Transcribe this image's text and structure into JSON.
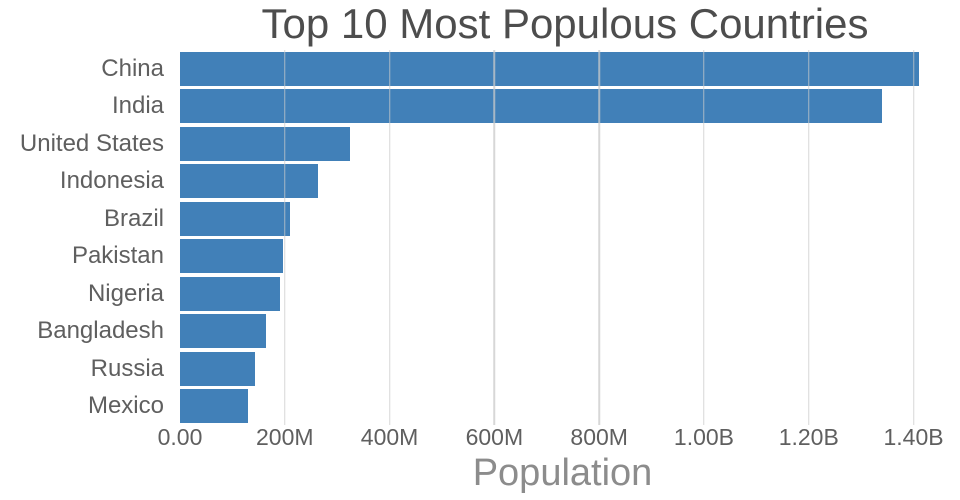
{
  "chart_data": {
    "type": "bar",
    "orientation": "horizontal",
    "title": "Top 10 Most Populous Countries",
    "xlabel": "Population",
    "ylabel": "",
    "categories": [
      "China",
      "India",
      "United States",
      "Indonesia",
      "Brazil",
      "Pakistan",
      "Nigeria",
      "Bangladesh",
      "Russia",
      "Mexico"
    ],
    "values": [
      1410000000,
      1340000000,
      325000000,
      264000000,
      209000000,
      197000000,
      191000000,
      165000000,
      144000000,
      129000000
    ],
    "xlim": [
      0,
      1460000000
    ],
    "xticks": [
      {
        "value": 0,
        "label": "0.00"
      },
      {
        "value": 200000000,
        "label": "200M"
      },
      {
        "value": 400000000,
        "label": "400M"
      },
      {
        "value": 600000000,
        "label": "600M"
      },
      {
        "value": 800000000,
        "label": "800M"
      },
      {
        "value": 1000000000,
        "label": "1.00B"
      },
      {
        "value": 1200000000,
        "label": "1.20B"
      },
      {
        "value": 1400000000,
        "label": "1.40B"
      }
    ],
    "bar_color": "#4180b8",
    "grid": true,
    "grid_color": "#c9c9c9",
    "legend": "none"
  }
}
